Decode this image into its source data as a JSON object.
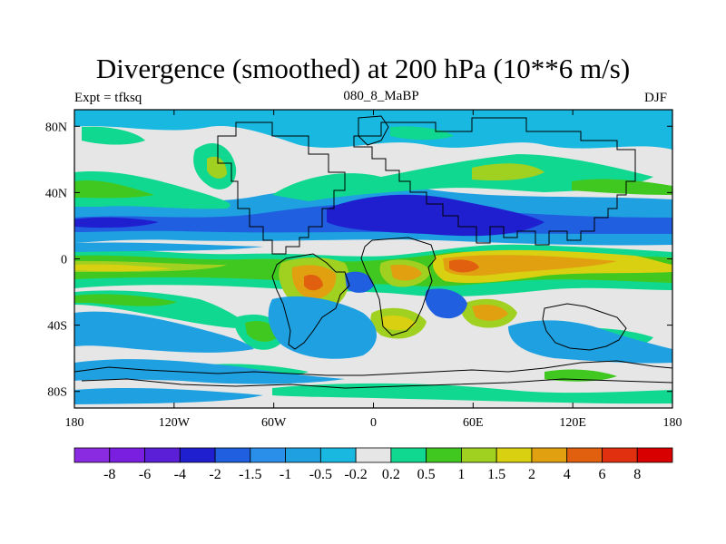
{
  "chart_data": {
    "type": "heatmap",
    "title": "Divergence (smoothed) at 200 hPa (10**6 m/s)",
    "subtitle": "080_8_MaBP",
    "left_label": "Expt = tfksq",
    "right_label": "DJF",
    "xlabel": "",
    "ylabel": "",
    "x_range": [
      -180,
      180
    ],
    "y_range": [
      -90,
      90
    ],
    "x_ticks": [
      -180,
      -120,
      -60,
      0,
      60,
      120,
      180
    ],
    "x_tick_labels": [
      "180",
      "120W",
      "60W",
      "0",
      "60E",
      "120E",
      "180"
    ],
    "y_ticks": [
      80,
      40,
      0,
      -40,
      -80
    ],
    "y_tick_labels": [
      "80N",
      "40N",
      "0",
      "40S",
      "80S"
    ],
    "colorbar": {
      "labels": [
        "-8",
        "-6",
        "-4",
        "-2",
        "-1.5",
        "-1",
        "-0.5",
        "-0.2",
        "0.2",
        "0.5",
        "1",
        "1.5",
        "2",
        "4",
        "6",
        "8"
      ],
      "colors": [
        "#8a2be2",
        "#7a1fe0",
        "#5a1fd6",
        "#1f1fd0",
        "#1f5fe0",
        "#2a8fe8",
        "#1fa0e0",
        "#18b8e0",
        "#e6e6e6",
        "#10d890",
        "#40c820",
        "#a0d020",
        "#d8d010",
        "#e0a010",
        "#e06010",
        "#e03010",
        "#d80000"
      ]
    }
  }
}
